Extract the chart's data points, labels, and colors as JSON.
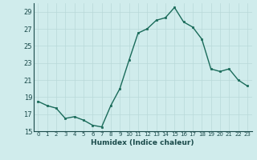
{
  "x": [
    0,
    1,
    2,
    3,
    4,
    5,
    6,
    7,
    8,
    9,
    10,
    11,
    12,
    13,
    14,
    15,
    16,
    17,
    18,
    19,
    20,
    21,
    22,
    23
  ],
  "y": [
    18.5,
    18.0,
    17.7,
    16.5,
    16.7,
    16.3,
    15.7,
    15.5,
    18.0,
    20.0,
    23.3,
    26.5,
    27.0,
    28.0,
    28.3,
    29.5,
    27.8,
    27.2,
    25.8,
    22.3,
    22.0,
    22.3,
    21.0,
    20.3
  ],
  "line_color": "#1a6b5a",
  "marker_color": "#1a6b5a",
  "bg_color": "#d0ecec",
  "grid_color": "#b8d8d8",
  "xlabel": "Humidex (Indice chaleur)",
  "ylim": [
    15,
    30
  ],
  "xlim": [
    -0.5,
    23.5
  ],
  "yticks": [
    15,
    17,
    19,
    21,
    23,
    25,
    27,
    29
  ],
  "xticks": [
    0,
    1,
    2,
    3,
    4,
    5,
    6,
    7,
    8,
    9,
    10,
    11,
    12,
    13,
    14,
    15,
    16,
    17,
    18,
    19,
    20,
    21,
    22,
    23
  ],
  "xtick_labels": [
    "0",
    "1",
    "2",
    "3",
    "4",
    "5",
    "6",
    "7",
    "8",
    "9",
    "10",
    "11",
    "12",
    "13",
    "14",
    "15",
    "16",
    "17",
    "18",
    "19",
    "20",
    "21",
    "22",
    "23"
  ]
}
